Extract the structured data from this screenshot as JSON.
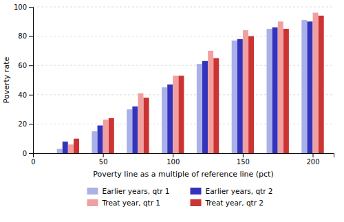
{
  "chart_data": {
    "type": "bar",
    "xlabel": "Poverty line as a multiple of reference line (pct)",
    "ylabel": "Poverty rate",
    "x": [
      25,
      50,
      75,
      100,
      125,
      150,
      175,
      200
    ],
    "series": [
      {
        "name": "Earlier years, qtr 1",
        "color": "#aab0e8",
        "values": [
          3,
          15,
          30,
          45,
          61,
          77,
          85,
          91
        ]
      },
      {
        "name": "Earlier years, qtr 2",
        "color": "#3333bb",
        "values": [
          8,
          19,
          32,
          47,
          63,
          78,
          86,
          90
        ]
      },
      {
        "name": "Treat year, qtr 1",
        "color": "#f0a0a0",
        "values": [
          6,
          23,
          41,
          53,
          70,
          84,
          90,
          96
        ]
      },
      {
        "name": "Treat year, qtr 2",
        "color": "#cc3333",
        "values": [
          10,
          24,
          38,
          53,
          65,
          80,
          85,
          94
        ]
      }
    ],
    "xlim": [
      0,
      215
    ],
    "xticks": [
      0,
      50,
      100,
      150,
      200
    ],
    "ylim": [
      0,
      100
    ],
    "yticks": [
      0,
      20,
      40,
      60,
      80,
      100
    ],
    "grid": true,
    "legend": "bottom"
  }
}
